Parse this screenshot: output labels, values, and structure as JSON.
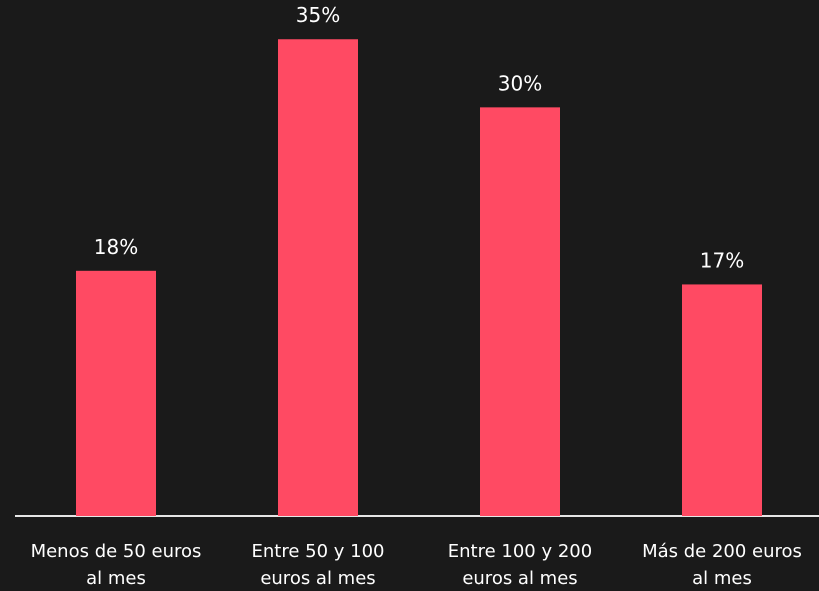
{
  "colors": {
    "background": "#1a1a1a",
    "bar": "#ff4a63",
    "text": "#ffffff",
    "axis": "#e6e6e6"
  },
  "chart_data": {
    "type": "bar",
    "categories": [
      [
        "Menos de 50 euros",
        "al mes"
      ],
      [
        "Entre 50 y 100",
        "euros al mes"
      ],
      [
        "Entre 100 y 200",
        "euros al mes"
      ],
      [
        "Más de 200 euros",
        "al mes"
      ]
    ],
    "values": [
      18,
      35,
      30,
      17
    ],
    "data_labels": [
      "18%",
      "35%",
      "30%",
      "17%"
    ],
    "title": "",
    "xlabel": "",
    "ylabel": "",
    "ylim": [
      0,
      37
    ],
    "grid": false,
    "legend": "none"
  }
}
